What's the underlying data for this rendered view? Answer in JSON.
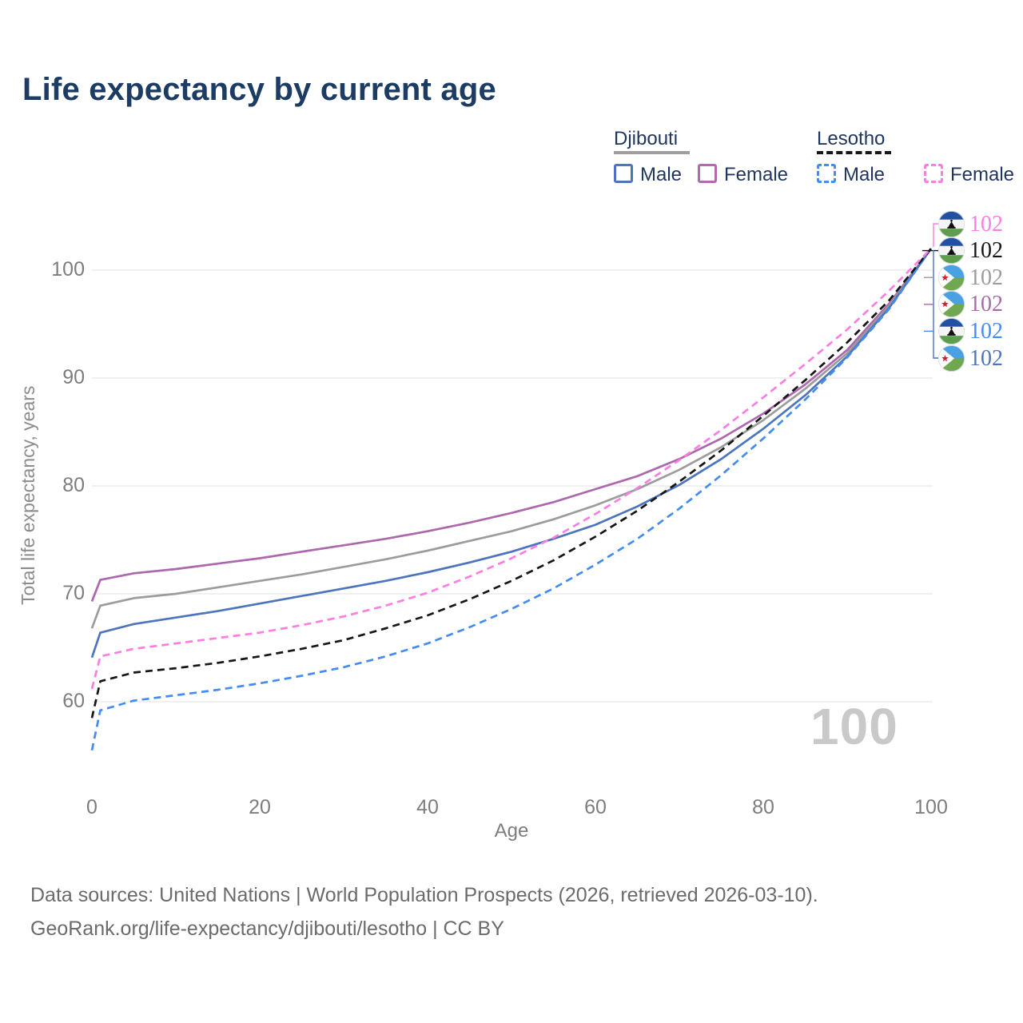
{
  "title": "Life expectancy by current age",
  "legend": {
    "groups": [
      {
        "country": "Djibouti",
        "line_style": "solid",
        "underline_color": "#9e9e9e",
        "items": [
          {
            "label": "Male",
            "color": "#4c75bd"
          },
          {
            "label": "Female",
            "color": "#b16ab0"
          }
        ]
      },
      {
        "country": "Lesotho",
        "line_style": "dashed",
        "underline_color": "#161616",
        "items": [
          {
            "label": "Male",
            "color": "#448cf0"
          },
          {
            "label": "Female",
            "color": "#fb7ee2"
          }
        ]
      }
    ]
  },
  "yaxis_title": "Total life expectancy, years",
  "xaxis_title": "Age",
  "watermark": "100",
  "chart_data": {
    "type": "line",
    "title": "Life expectancy by current age",
    "xlabel": "Age",
    "ylabel": "Total life expectancy, years",
    "xlim": [
      0,
      100
    ],
    "ylim": [
      55,
      103
    ],
    "xticks": [
      0,
      20,
      40,
      60,
      80,
      100
    ],
    "yticks": [
      60,
      70,
      80,
      90,
      100
    ],
    "grid": "horizontal",
    "legend_position": "top-right",
    "x": [
      0,
      1,
      5,
      10,
      15,
      20,
      25,
      30,
      35,
      40,
      45,
      50,
      55,
      60,
      65,
      70,
      75,
      80,
      85,
      90,
      95,
      100
    ],
    "series": [
      {
        "name": "Djibouti Female",
        "color": "#ad68ad",
        "dashed": false,
        "values": [
          69.3,
          71.3,
          71.9,
          72.3,
          72.8,
          73.3,
          73.9,
          74.5,
          75.1,
          75.8,
          76.6,
          77.5,
          78.5,
          79.7,
          80.9,
          82.5,
          84.4,
          86.7,
          89.4,
          92.6,
          96.9,
          102
        ]
      },
      {
        "name": "Djibouti",
        "color": "#9c9c9c",
        "dashed": false,
        "values": [
          66.8,
          68.9,
          69.6,
          70.0,
          70.6,
          71.2,
          71.8,
          72.5,
          73.2,
          74.0,
          74.9,
          75.8,
          76.9,
          78.2,
          79.7,
          81.5,
          83.6,
          86.1,
          89.0,
          92.3,
          96.7,
          102
        ]
      },
      {
        "name": "Djibouti Male",
        "color": "#4c75bd",
        "dashed": false,
        "values": [
          64.1,
          66.4,
          67.2,
          67.8,
          68.4,
          69.1,
          69.8,
          70.5,
          71.2,
          72.0,
          72.9,
          73.9,
          75.1,
          76.4,
          78.1,
          80.1,
          82.5,
          85.3,
          88.4,
          92.0,
          96.5,
          102
        ]
      },
      {
        "name": "Lesotho Male",
        "color": "#448cf0",
        "dashed": true,
        "values": [
          55.5,
          59.2,
          60.1,
          60.6,
          61.1,
          61.7,
          62.4,
          63.2,
          64.2,
          65.4,
          66.9,
          68.6,
          70.5,
          72.7,
          75.1,
          77.9,
          81.0,
          84.4,
          88.0,
          91.9,
          96.4,
          102
        ]
      },
      {
        "name": "Lesotho",
        "color": "#161616",
        "dashed": true,
        "values": [
          58.5,
          61.9,
          62.7,
          63.1,
          63.6,
          64.2,
          64.9,
          65.7,
          66.8,
          68.0,
          69.5,
          71.2,
          73.1,
          75.3,
          77.7,
          80.4,
          83.3,
          86.5,
          89.8,
          93.3,
          97.2,
          102
        ]
      },
      {
        "name": "Lesotho Female",
        "color": "#fb7ee2",
        "dashed": true,
        "values": [
          61.2,
          64.2,
          64.9,
          65.4,
          65.9,
          66.4,
          67.1,
          67.9,
          68.9,
          70.1,
          71.6,
          73.3,
          75.2,
          77.4,
          79.8,
          82.4,
          85.2,
          88.2,
          91.3,
          94.5,
          98.1,
          102
        ]
      }
    ]
  },
  "end_labels": [
    {
      "value": "102",
      "series": "Lesotho Female",
      "flag": "lesotho",
      "color": "#fb7ee2"
    },
    {
      "value": "102",
      "series": "Lesotho",
      "flag": "lesotho",
      "color": "#161616"
    },
    {
      "value": "102",
      "series": "Djibouti",
      "flag": "djibouti",
      "color": "#9b9b9b"
    },
    {
      "value": "102",
      "series": "Djibouti Female",
      "flag": "djibouti",
      "color": "#a76ba8"
    },
    {
      "value": "102",
      "series": "Lesotho Male",
      "flag": "lesotho",
      "color": "#448cf0"
    },
    {
      "value": "102",
      "series": "Djibouti Male",
      "flag": "djibouti",
      "color": "#4c75bd"
    }
  ],
  "footer": {
    "line1": "Data sources: United Nations | World Population Prospects (2026, retrieved 2026-03-10).",
    "line2": "GeoRank.org/life-expectancy/djibouti/lesotho | CC BY"
  }
}
